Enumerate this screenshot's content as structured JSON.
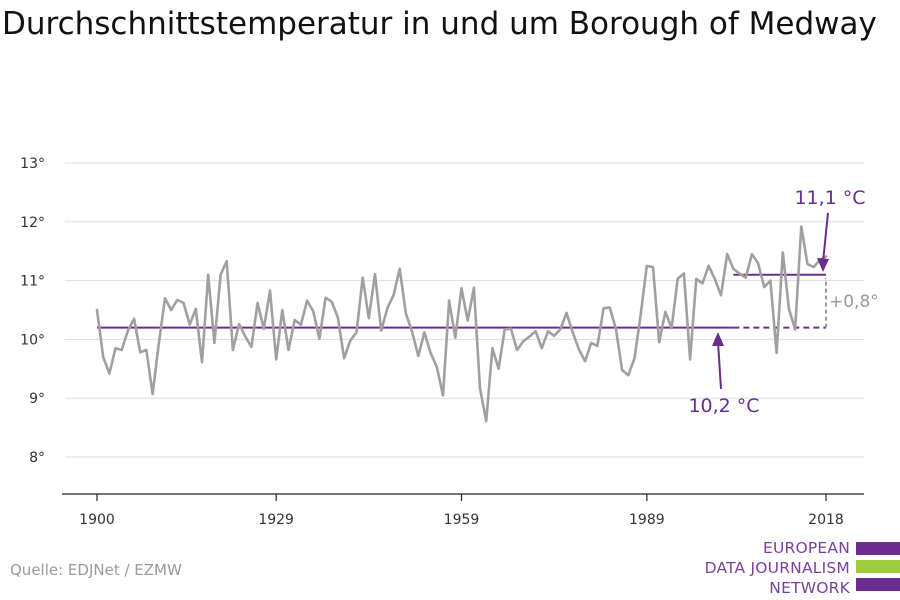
{
  "title": "Durchschnittstemperatur in und um Borough of Medway",
  "source": "Quelle: EDJNet / EZMW",
  "logo": {
    "lines": [
      "EUROPEAN",
      "DATA JOURNALISM",
      "NETWORK"
    ],
    "colors": [
      "#6a2c91",
      "#9ccc3c",
      "#6a2c91"
    ]
  },
  "colors": {
    "series": "#a0a0a0",
    "baseline": "#6a2c91",
    "annotation_purple": "#6a2c91",
    "annotation_gray": "#9a9a9a",
    "grid": "#dddddd"
  },
  "chart_data": {
    "type": "line",
    "title": "Durchschnittstemperatur in und um Borough of Medway",
    "xlabel": "",
    "ylabel": "",
    "xlim": [
      1900,
      2018
    ],
    "ylim": [
      8,
      13
    ],
    "xticks": [
      1900,
      1929,
      1959,
      1989,
      2018
    ],
    "xtick_labels": [
      "1900",
      "1929",
      "1959",
      "1989",
      "2018"
    ],
    "yticks": [
      8,
      9,
      10,
      11,
      12,
      13
    ],
    "ytick_labels": [
      "8°",
      "9°",
      "10°",
      "11°",
      "12°",
      "13°"
    ],
    "grid": true,
    "series": [
      {
        "x": [
          1900,
          1901,
          1902,
          1903,
          1904,
          1905,
          1906,
          1907,
          1908,
          1909,
          1910,
          1911,
          1912,
          1913,
          1914,
          1915,
          1916,
          1917,
          1918,
          1919,
          1920,
          1921,
          1922,
          1923,
          1924,
          1925,
          1926,
          1927,
          1928,
          1929,
          1930,
          1931,
          1932,
          1933,
          1934,
          1935,
          1936,
          1937,
          1938,
          1939,
          1940,
          1941,
          1942,
          1943,
          1944,
          1945,
          1946,
          1947,
          1948,
          1949,
          1950,
          1951,
          1952,
          1953,
          1954,
          1955,
          1956,
          1957,
          1958,
          1959,
          1960,
          1961,
          1962,
          1963,
          1964,
          1965,
          1966,
          1967,
          1968,
          1969,
          1970,
          1971,
          1972,
          1973,
          1974,
          1975,
          1976,
          1977,
          1978,
          1979,
          1980,
          1981,
          1982,
          1983,
          1984,
          1985,
          1986,
          1987,
          1988,
          1989,
          1990,
          1991,
          1992,
          1993,
          1994,
          1995,
          1996,
          1997,
          1998,
          1999,
          2000,
          2001,
          2002,
          2003,
          2004,
          2005,
          2006,
          2007,
          2008,
          2009,
          2010,
          2011,
          2012,
          2013,
          2014,
          2015,
          2016,
          2017,
          2018
        ],
        "values": [
          10.5,
          9.7,
          9.42,
          9.85,
          9.82,
          10.15,
          10.35,
          9.78,
          9.82,
          9.07,
          9.93,
          10.7,
          10.5,
          10.67,
          10.62,
          10.25,
          10.52,
          9.61,
          11.1,
          9.94,
          11.1,
          11.33,
          9.82,
          10.26,
          10.05,
          9.87,
          10.62,
          10.18,
          10.83,
          9.66,
          10.5,
          9.82,
          10.33,
          10.25,
          10.66,
          10.48,
          10.01,
          10.71,
          10.64,
          10.37,
          9.68,
          9.98,
          10.12,
          11.05,
          10.36,
          11.11,
          10.15,
          10.53,
          10.75,
          11.2,
          10.44,
          10.13,
          9.72,
          10.12,
          9.77,
          9.53,
          9.05,
          10.66,
          10.03,
          10.87,
          10.32,
          10.88,
          9.17,
          8.61,
          9.85,
          9.5,
          10.17,
          10.18,
          9.82,
          9.97,
          10.05,
          10.14,
          9.85,
          10.14,
          10.06,
          10.17,
          10.45,
          10.12,
          9.83,
          9.63,
          9.94,
          9.89,
          10.53,
          10.54,
          10.18,
          9.48,
          9.39,
          9.68,
          10.42,
          11.25,
          11.23,
          9.95,
          10.47,
          10.19,
          11.03,
          11.12,
          9.66,
          11.03,
          10.95,
          11.25,
          11.03,
          10.75,
          11.45,
          11.2,
          11.12,
          11.05,
          11.45,
          11.3,
          10.89,
          11.0,
          9.77,
          11.48,
          10.52,
          10.17,
          11.92,
          11.28,
          11.23,
          11.35,
          11.41
        ]
      }
    ],
    "reference_lines": [
      {
        "value": 10.2,
        "label": "10,2 °C",
        "solid_range": [
          1900,
          2003
        ],
        "dashed_range": [
          2003,
          2018
        ]
      },
      {
        "value": 11.1,
        "label": "11,1 °C",
        "solid_range": [
          2003,
          2018
        ]
      }
    ],
    "annotations": [
      {
        "label": "+0,8°",
        "from": 10.2,
        "to": 11.1,
        "x": 2018
      }
    ]
  }
}
